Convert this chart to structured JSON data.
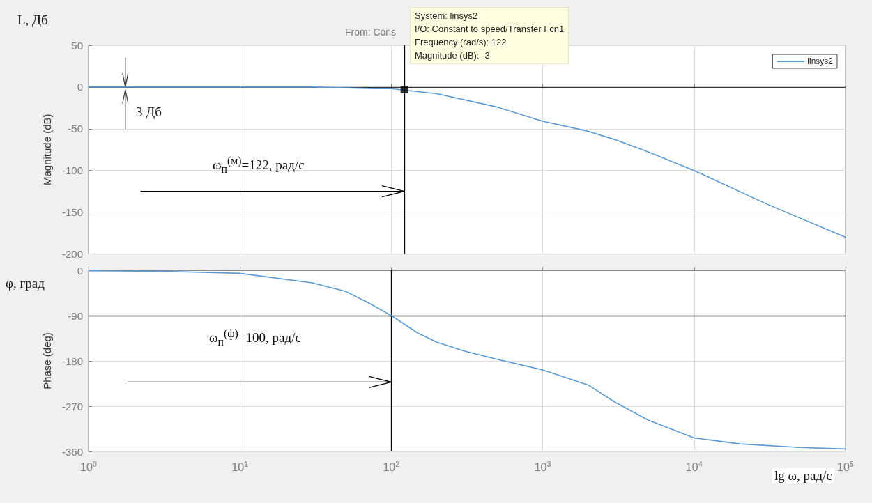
{
  "chart_data": [
    {
      "type": "line",
      "ylabel": "Magnitude (dB)",
      "xlim": [
        1,
        100000
      ],
      "ylim": [
        -200,
        50
      ],
      "yticks": [
        -200,
        -150,
        -100,
        -50,
        0,
        50
      ],
      "log": "x",
      "grid": true,
      "legend": "top right",
      "tick_labels": "y",
      "line_style": "solid",
      "series": [
        {
          "type": "line",
          "name": "linsys2",
          "color": "#5b9bd5",
          "marker": "none",
          "x": [
            1,
            10,
            30,
            50,
            80,
            100,
            200,
            500,
            1000,
            2000,
            3000,
            5000,
            10000,
            30000,
            100000
          ],
          "values": [
            0,
            0,
            0,
            -1,
            -2,
            -2,
            -8,
            -24,
            -41,
            -53,
            -63,
            -78,
            -100,
            -140,
            -180
          ]
        },
        {
          "type": "scatter",
          "color": "#000000",
          "marker": "square",
          "x": [
            122
          ],
          "values": [
            -3
          ]
        }
      ],
      "ref_lines": [
        {
          "axis": "y",
          "value": 0,
          "color": "#333333"
        },
        {
          "axis": "x",
          "value": 122,
          "color": "#000000"
        }
      ],
      "annotations": [
        "L, Дб",
        "From: Cons",
        "3 Дб",
        "ω$_{п}$$^{(м)}$=122, рад/с",
        "System: linsys2\nI/O: Constant to speed/Transfer Fcn1\nFrequency (rad/s): 122\nMagnitude (dB): -3"
      ]
    },
    {
      "type": "line",
      "ylabel": "Phase (deg)",
      "xlabel": "lg ω, рад/с",
      "xlim": [
        1,
        100000
      ],
      "xticks": [
        {
          "value": 1,
          "label": "10$^{0}$"
        },
        {
          "value": 10,
          "label": "10$^{1}$"
        },
        {
          "value": 100,
          "label": "10$^{2}$"
        },
        {
          "value": 1000,
          "label": "10$^{3}$"
        },
        {
          "value": 10000,
          "label": "10$^{4}$"
        },
        {
          "value": 100000,
          "label": "10$^{5}$"
        }
      ],
      "ylim": [
        -360,
        0
      ],
      "yticks": [
        -360,
        -270,
        -180,
        -90,
        0
      ],
      "log": "x",
      "grid": true,
      "line_style": "solid",
      "series": [
        {
          "type": "line",
          "color": "#5b9bd5",
          "marker": "none",
          "x": [
            1,
            3,
            10,
            30,
            50,
            70,
            100,
            150,
            200,
            300,
            500,
            1000,
            2000,
            3000,
            5000,
            10000,
            20000,
            50000,
            100000
          ],
          "values": [
            -1,
            -2,
            -6,
            -25,
            -42,
            -64,
            -90,
            -125,
            -143,
            -160,
            -177,
            -198,
            -228,
            -262,
            -298,
            -333,
            -345,
            -352,
            -355
          ]
        }
      ],
      "ref_lines": [
        {
          "axis": "y",
          "value": -90,
          "color": "#333333"
        },
        {
          "axis": "x",
          "value": 100,
          "color": "#000000"
        }
      ],
      "annotations": [
        "φ, град",
        "ω$_{п}$$^{(ф)}$=100, рад/с"
      ]
    }
  ]
}
